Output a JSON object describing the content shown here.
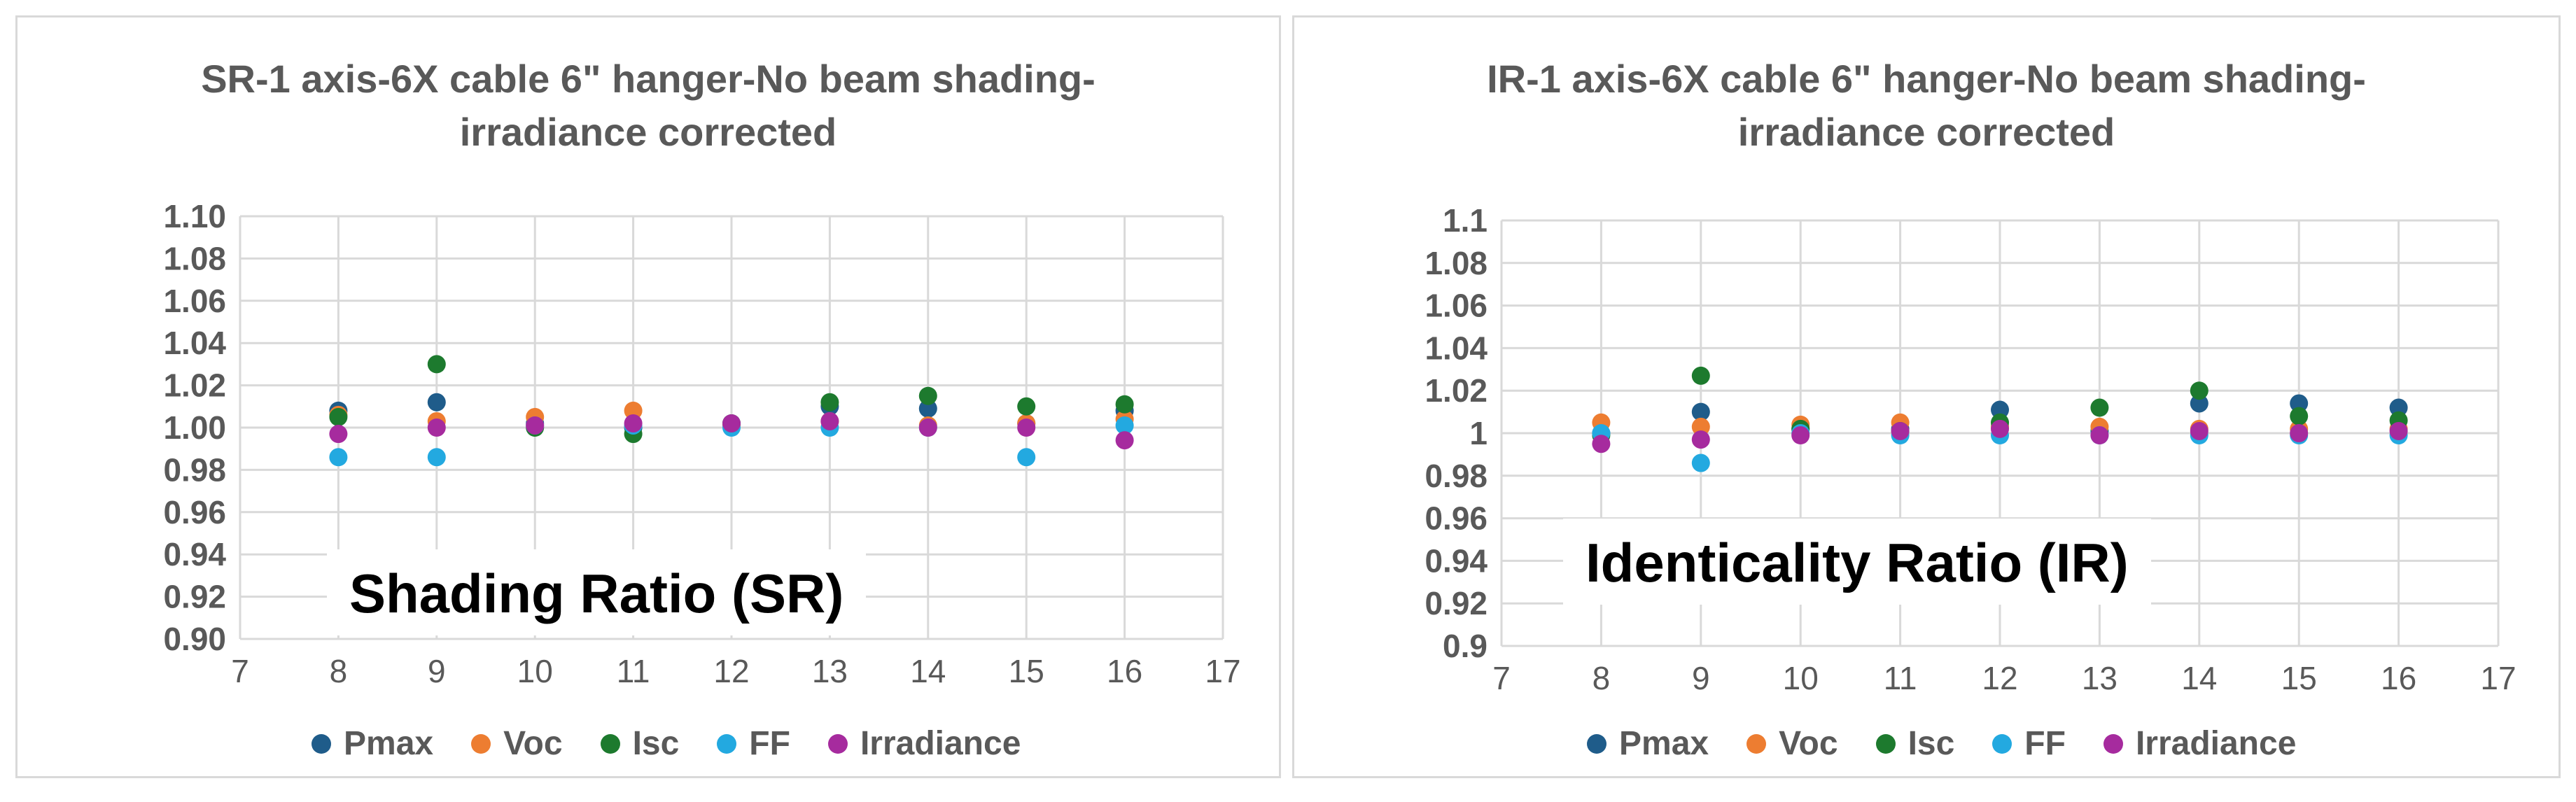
{
  "chart_data": [
    {
      "type": "scatter",
      "title": [
        "SR-1 axis-6X cable 6\" hanger-No beam shading-",
        "irradiance corrected"
      ],
      "annotation": "Shading Ratio (SR)",
      "xlim": [
        7,
        17
      ],
      "ylim": [
        0.9,
        1.1
      ],
      "x_ticks": [
        "7",
        "8",
        "9",
        "10",
        "11",
        "12",
        "13",
        "14",
        "15",
        "16",
        "17"
      ],
      "y_ticks": [
        "0.90",
        "0.92",
        "0.94",
        "0.96",
        "0.98",
        "1.00",
        "1.02",
        "1.04",
        "1.06",
        "1.08",
        "1.10"
      ],
      "grid": true,
      "legend_position": "bottom",
      "series": [
        {
          "name": "Pmax",
          "color": "#1F5C8A",
          "x": [
            8,
            9,
            10,
            11,
            12,
            13,
            14,
            15,
            16
          ],
          "y": [
            1.008,
            1.012,
            1.002,
            1.0,
            1.002,
            1.01,
            1.009,
            1.002,
            1.008
          ]
        },
        {
          "name": "Voc",
          "color": "#ED7D31",
          "x": [
            8,
            9,
            10,
            11,
            12,
            13,
            14,
            15,
            16
          ],
          "y": [
            1.006,
            1.003,
            1.005,
            1.008,
            1.001,
            1.003,
            1.001,
            1.002,
            1.004
          ]
        },
        {
          "name": "Isc",
          "color": "#1D7A2E",
          "x": [
            8,
            9,
            10,
            11,
            12,
            13,
            14,
            15,
            16
          ],
          "y": [
            1.005,
            1.03,
            1.0,
            0.997,
            1.002,
            1.012,
            1.015,
            1.01,
            1.011
          ]
        },
        {
          "name": "FF",
          "color": "#23A9E0",
          "x": [
            8,
            9,
            10,
            11,
            12,
            13,
            14,
            15,
            16
          ],
          "y": [
            0.986,
            0.986,
            1.001,
            1.001,
            1.0,
            1.0,
            1.0,
            0.986,
            1.001
          ]
        },
        {
          "name": "Irradiance",
          "color": "#A62B9E",
          "x": [
            8,
            9,
            10,
            11,
            12,
            13,
            14,
            15,
            16
          ],
          "y": [
            0.997,
            1.0,
            1.001,
            1.002,
            1.002,
            1.003,
            1.0,
            1.0,
            0.994
          ]
        }
      ]
    },
    {
      "type": "scatter",
      "title": [
        "IR-1 axis-6X cable 6\" hanger-No beam shading-",
        "irradiance corrected"
      ],
      "annotation": "Identicality Ratio (IR)",
      "xlim": [
        7,
        17
      ],
      "ylim": [
        0.9,
        1.1
      ],
      "x_ticks": [
        "7",
        "8",
        "9",
        "10",
        "11",
        "12",
        "13",
        "14",
        "15",
        "16",
        "17"
      ],
      "y_ticks": [
        "0.9",
        "0.92",
        "0.94",
        "0.96",
        "0.98",
        "1",
        "1.02",
        "1.04",
        "1.06",
        "1.08",
        "1.1"
      ],
      "grid": true,
      "legend_position": "bottom",
      "series": [
        {
          "name": "Pmax",
          "color": "#1F5C8A",
          "x": [
            8,
            9,
            10,
            11,
            12,
            13,
            14,
            15,
            16
          ],
          "y": [
            1.0,
            1.01,
            1.002,
            1.002,
            1.011,
            1.001,
            1.014,
            1.014,
            1.012
          ]
        },
        {
          "name": "Voc",
          "color": "#ED7D31",
          "x": [
            8,
            9,
            10,
            11,
            12,
            13,
            14,
            15,
            16
          ],
          "y": [
            1.005,
            1.003,
            1.004,
            1.005,
            1.003,
            1.003,
            1.002,
            1.002,
            1.002
          ]
        },
        {
          "name": "Isc",
          "color": "#1D7A2E",
          "x": [
            8,
            9,
            10,
            11,
            12,
            13,
            14,
            15,
            16
          ],
          "y": [
            0.999,
            1.027,
            1.002,
            1.001,
            1.005,
            1.012,
            1.02,
            1.008,
            1.006
          ]
        },
        {
          "name": "FF",
          "color": "#23A9E0",
          "x": [
            8,
            9,
            10,
            11,
            12,
            13,
            14,
            15,
            16
          ],
          "y": [
            1.0,
            0.986,
            1.0,
            0.999,
            0.999,
            0.999,
            0.999,
            0.999,
            0.999
          ]
        },
        {
          "name": "Irradiance",
          "color": "#A62B9E",
          "x": [
            8,
            9,
            10,
            11,
            12,
            13,
            14,
            15,
            16
          ],
          "y": [
            0.995,
            0.997,
            0.999,
            1.001,
            1.002,
            0.999,
            1.001,
            1.0,
            1.001
          ]
        }
      ]
    }
  ]
}
